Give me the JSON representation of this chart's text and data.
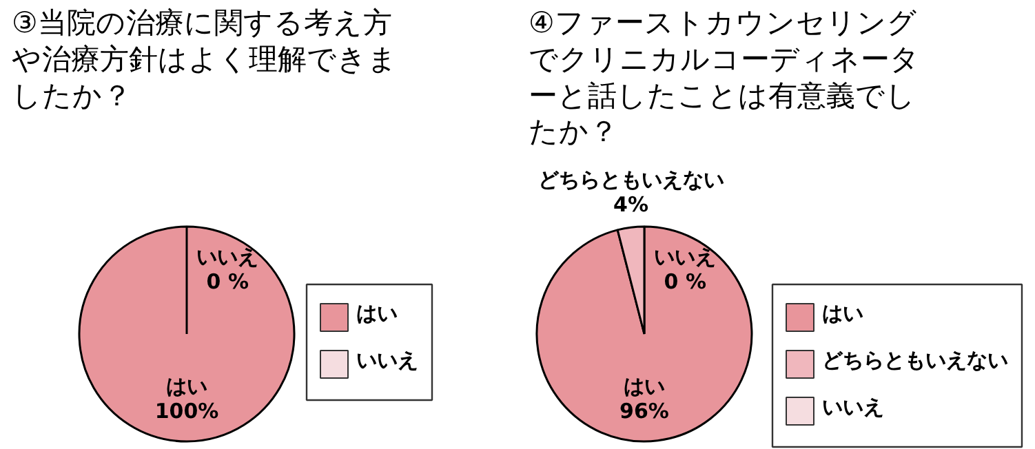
{
  "chart_data": [
    {
      "type": "pie",
      "title": "③当院の治療に関する考え方や治療方針はよく理解できましたか？",
      "categories": [
        "はい",
        "いいえ"
      ],
      "values": [
        100,
        0
      ],
      "colors": [
        "#e8959b",
        "#f5dde0"
      ],
      "value_labels": [
        "100%",
        "0 %"
      ],
      "legend": "right"
    },
    {
      "type": "pie",
      "title": "④ファーストカウンセリングでクリニカルコーディネーターと話したことは有意義でしたか？",
      "categories": [
        "はい",
        "どちらともいえない",
        "いいえ"
      ],
      "values": [
        96,
        4,
        0
      ],
      "colors": [
        "#e8959b",
        "#f0b7bd",
        "#f5dde0"
      ],
      "value_labels": [
        "96%",
        "4%",
        "0 %"
      ],
      "legend": "right"
    }
  ]
}
